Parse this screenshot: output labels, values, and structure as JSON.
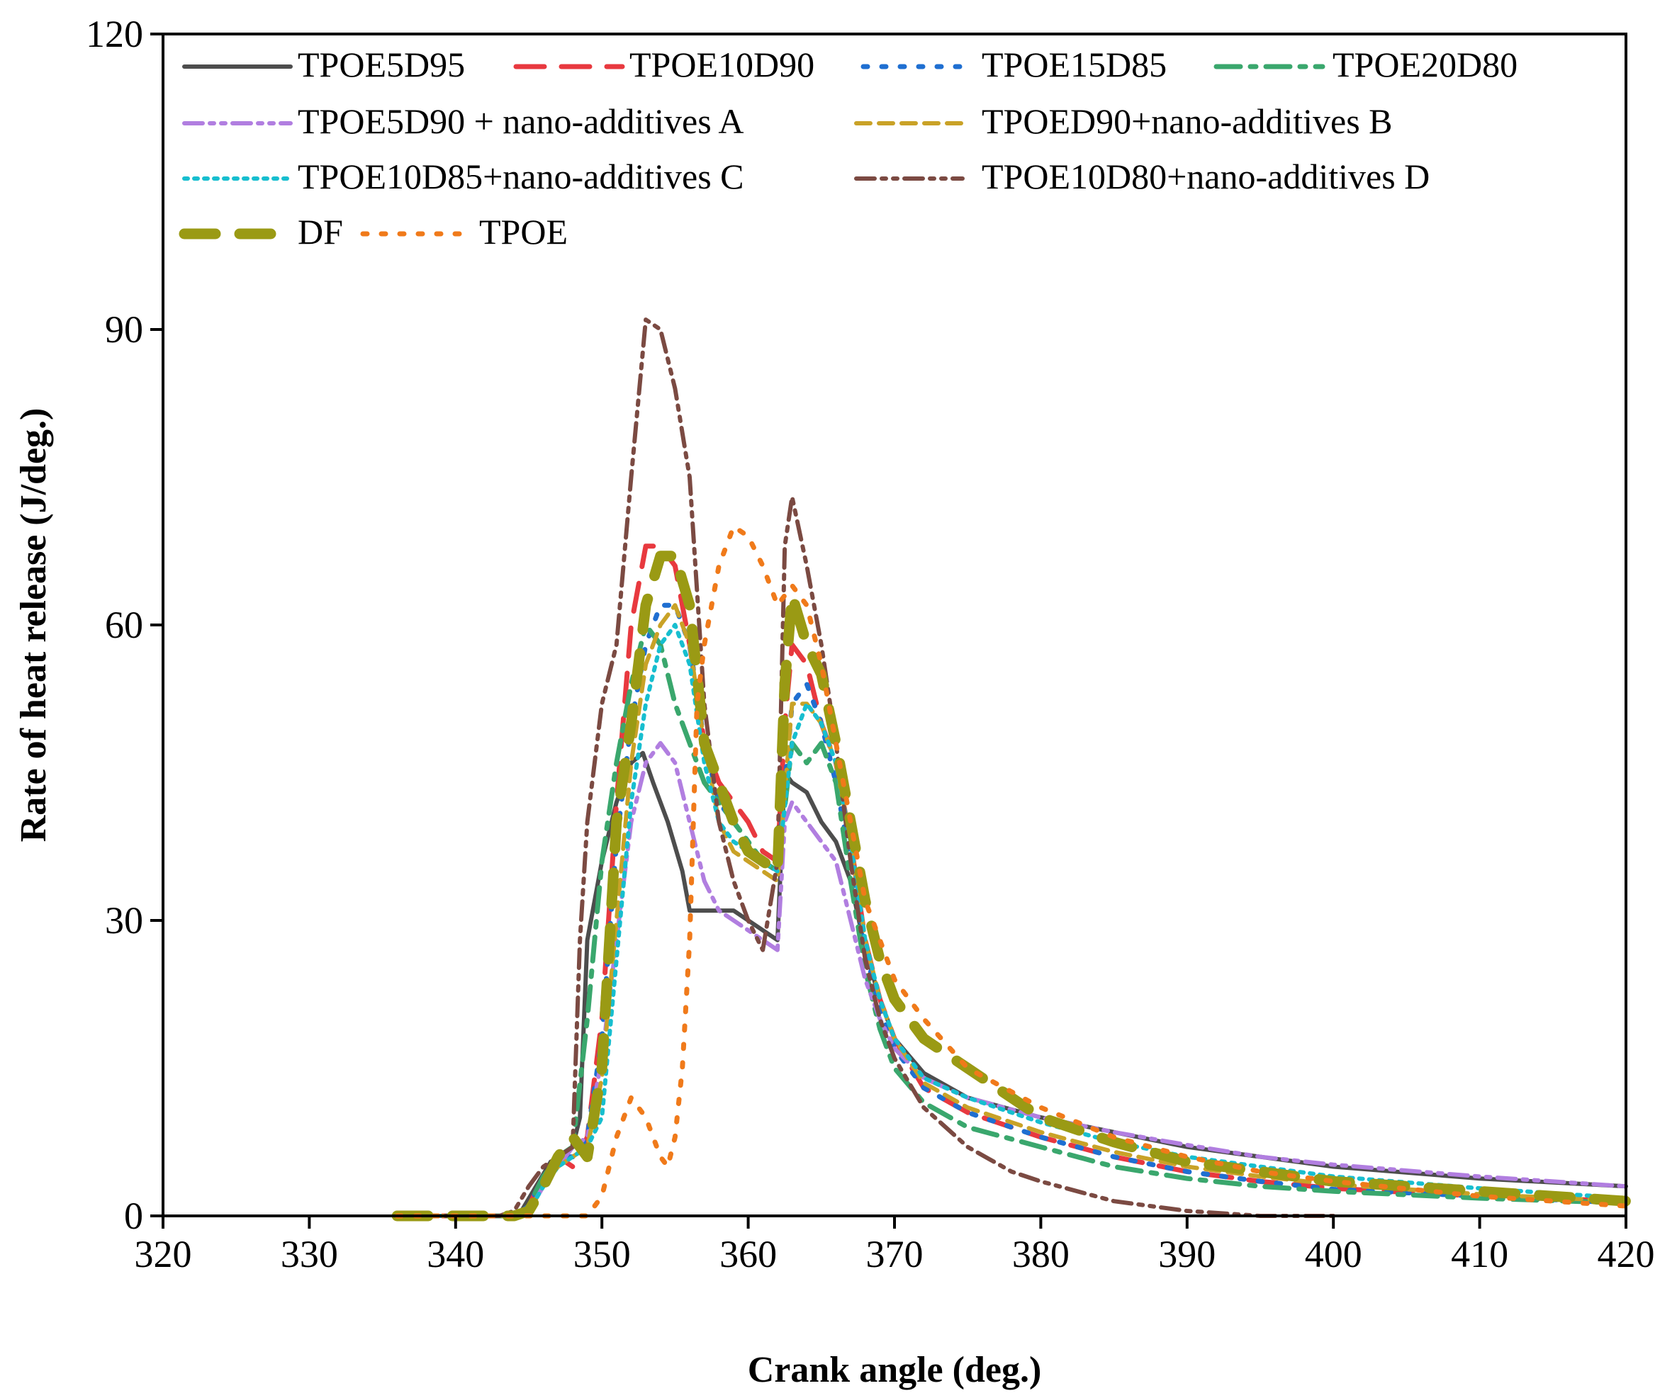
{
  "chart_data": {
    "type": "line",
    "title": "",
    "xlabel": "Crank angle (deg.)",
    "ylabel": "Rate of heat release (J/deg.)",
    "xlim": [
      320,
      420
    ],
    "ylim": [
      0,
      120
    ],
    "xticks": [
      320,
      330,
      340,
      350,
      360,
      370,
      380,
      390,
      400,
      410,
      420
    ],
    "yticks": [
      0,
      30,
      60,
      90,
      120
    ],
    "grid": false,
    "legend_position": "top-left",
    "series": [
      {
        "name": "TPOE5D95",
        "color": "#4d4d4d",
        "dash": "solid",
        "x": [
          336,
          343,
          344.5,
          345.5,
          346.5,
          347.5,
          348,
          348.5,
          349,
          350,
          351,
          352,
          352.8,
          353.5,
          354.5,
          355.5,
          356,
          357,
          358,
          359,
          360,
          361,
          362,
          362.5,
          363,
          364,
          365,
          366,
          367,
          368,
          369,
          370,
          372,
          375,
          380,
          385,
          390,
          395,
          400,
          410,
          420
        ],
        "y": [
          0,
          0,
          0.5,
          3,
          5.5,
          6,
          7,
          10,
          28,
          36,
          42,
          46,
          47,
          44,
          40,
          35,
          31,
          31,
          31,
          31,
          30,
          29,
          28,
          45,
          44,
          43,
          40,
          38,
          34,
          27,
          22,
          18,
          14.5,
          12,
          10,
          8.5,
          7,
          6,
          5,
          3.8,
          3
        ]
      },
      {
        "name": "TPOE10D90",
        "color": "#e8393f",
        "dash": "long-dash",
        "x": [
          336,
          344,
          345,
          346,
          347,
          348,
          349,
          350,
          351,
          352,
          353,
          354,
          355,
          356,
          357,
          358,
          359,
          360,
          361,
          362,
          362.5,
          363,
          364,
          365,
          366,
          367,
          368,
          369,
          370,
          372,
          375,
          380,
          385,
          390,
          395,
          400,
          410,
          420
        ],
        "y": [
          0,
          0,
          1,
          4,
          6,
          5,
          8,
          20,
          42,
          60,
          68,
          68,
          66,
          58,
          48,
          44,
          42,
          40,
          37,
          36,
          50,
          58,
          56,
          50,
          46,
          38,
          28,
          22,
          18,
          13,
          10.5,
          8,
          6,
          4.5,
          3.5,
          2.8,
          2,
          1.5
        ]
      },
      {
        "name": "TPOE15D85",
        "color": "#1f6fd1",
        "dash": "dot",
        "x": [
          336,
          344,
          345,
          346,
          347,
          348,
          349,
          350,
          351,
          352,
          353,
          354,
          355,
          356,
          357,
          358,
          359,
          360,
          361,
          362,
          363,
          364,
          365,
          366,
          367,
          368,
          369,
          370,
          372,
          375,
          380,
          385,
          390,
          395,
          400,
          410,
          420
        ],
        "y": [
          0,
          0,
          1,
          4,
          6,
          6,
          8,
          18,
          38,
          50,
          58,
          62,
          62,
          58,
          48,
          42,
          40,
          38,
          36,
          35,
          52,
          54,
          50,
          44,
          36,
          27,
          21,
          17,
          13,
          10.5,
          8,
          6,
          4.5,
          3.5,
          2.7,
          2,
          1.3
        ]
      },
      {
        "name": "TPOE20D80",
        "color": "#3aa76d",
        "dash": "dash-dot",
        "x": [
          336,
          344,
          345,
          346,
          347,
          348,
          349,
          350,
          351,
          352,
          353,
          354,
          355,
          356,
          357,
          358,
          359,
          360,
          361,
          362,
          363,
          364,
          365,
          366,
          367,
          368,
          369,
          370,
          372,
          375,
          380,
          385,
          390,
          395,
          400,
          410,
          420
        ],
        "y": [
          0,
          0,
          1,
          4,
          6,
          7,
          20,
          36,
          46,
          54,
          60,
          58,
          52,
          48,
          44,
          42,
          40,
          38,
          36,
          35,
          48,
          46,
          48,
          44,
          34,
          25,
          19,
          15,
          11.5,
          9,
          7,
          5,
          3.8,
          3,
          2.5,
          1.8,
          1.3
        ]
      },
      {
        "name": "TPOE5D90 + nano-additives A",
        "color": "#b17ee0",
        "dash": "dash-dot-dot",
        "x": [
          336,
          344,
          345,
          346,
          347,
          348,
          349,
          350,
          351,
          352,
          353,
          354,
          355,
          356,
          357,
          358,
          359,
          360,
          361,
          362,
          362.5,
          363,
          364,
          365,
          366,
          367,
          368,
          369,
          370,
          372,
          375,
          380,
          385,
          390,
          395,
          400,
          410,
          420
        ],
        "y": [
          0,
          0,
          0.5,
          3,
          5,
          7,
          8,
          16,
          28,
          40,
          46,
          48,
          46,
          40,
          34,
          31,
          30,
          29,
          28,
          27,
          40,
          42,
          40,
          38,
          36,
          30,
          24,
          20,
          17,
          14,
          12,
          10,
          8.5,
          7.2,
          6,
          5.2,
          4,
          3
        ]
      },
      {
        "name": "TPOED90+nano-additives B",
        "color": "#c9a227",
        "dash": "short-dash",
        "x": [
          336,
          344,
          345,
          346,
          347,
          348,
          349,
          350,
          351,
          352,
          353,
          354,
          355,
          356,
          357,
          358,
          359,
          360,
          361,
          362,
          363,
          364,
          365,
          366,
          367,
          368,
          369,
          370,
          372,
          375,
          380,
          385,
          390,
          395,
          400,
          410,
          420
        ],
        "y": [
          0,
          0,
          0.5,
          3,
          5,
          6,
          7,
          14,
          30,
          46,
          56,
          60,
          62,
          58,
          48,
          40,
          37,
          36,
          35,
          34,
          52,
          52,
          50,
          46,
          38,
          28,
          22,
          18,
          13.5,
          11,
          8.5,
          6.5,
          5,
          4,
          3.2,
          2.2,
          1.5
        ]
      },
      {
        "name": "TPOE10D85+nano-additives C",
        "color": "#17becf",
        "dash": "dense-dot",
        "x": [
          336,
          344,
          345,
          346,
          347,
          348,
          349,
          350,
          351,
          352,
          353,
          354,
          355,
          356,
          357,
          358,
          359,
          360,
          361,
          362,
          363,
          364,
          365,
          366,
          367,
          368,
          369,
          370,
          372,
          375,
          380,
          385,
          390,
          395,
          400,
          410,
          420
        ],
        "y": [
          0,
          0,
          0.5,
          3,
          5,
          6,
          7,
          10,
          26,
          42,
          52,
          58,
          60,
          56,
          46,
          40,
          38,
          37,
          36,
          35,
          48,
          52,
          50,
          46,
          38,
          28,
          22,
          18,
          14,
          12,
          9.5,
          7.5,
          6,
          5,
          4,
          2.8,
          1.8
        ]
      },
      {
        "name": "TPOE10D80+nano-additives D",
        "color": "#7b4a42",
        "dash": "dash-dot-dot",
        "x": [
          336,
          343,
          344,
          345,
          346,
          347,
          348,
          348.5,
          349,
          350,
          351,
          352,
          353,
          354,
          355,
          356,
          357,
          358,
          359,
          360,
          361,
          362,
          362.5,
          363,
          364,
          365,
          366,
          367,
          368,
          369,
          370,
          372,
          375,
          378,
          380,
          385,
          390,
          395,
          400
        ],
        "y": [
          0,
          0,
          0.5,
          3,
          5,
          6,
          7,
          28,
          40,
          52,
          58,
          75,
          91,
          90,
          84,
          75,
          52,
          40,
          34,
          30,
          27,
          36,
          68,
          73,
          66,
          58,
          48,
          36,
          26,
          20,
          16,
          11,
          7,
          4.5,
          3.5,
          1.5,
          0.5,
          0,
          0
        ]
      },
      {
        "name": "DF",
        "color": "#9a9a14",
        "dash": "thick-dash",
        "x": [
          336,
          344,
          345,
          346,
          347,
          348,
          349,
          350,
          351,
          352,
          353,
          354,
          355,
          356,
          357,
          358,
          359,
          360,
          361,
          362,
          362.5,
          363,
          364,
          365,
          366,
          367,
          368,
          369,
          370,
          372,
          375,
          380,
          385,
          390,
          395,
          400,
          410,
          420
        ],
        "y": [
          0,
          0,
          0.5,
          3,
          6,
          8,
          6,
          15,
          40,
          50,
          62,
          67,
          67,
          62,
          48,
          44,
          40,
          37,
          36,
          35,
          54,
          63,
          58,
          55,
          48,
          40,
          32,
          26,
          22,
          18,
          15,
          10,
          7.5,
          5.5,
          4.5,
          3.5,
          2.5,
          1.5
        ]
      },
      {
        "name": "TPOE",
        "color": "#f07a1a",
        "dash": "dot",
        "x": [
          336,
          348,
          349,
          350,
          351,
          352,
          353,
          354,
          354.5,
          355,
          355.5,
          356,
          356.5,
          357,
          358,
          359,
          360,
          361,
          362,
          363,
          364,
          365,
          366,
          367,
          368,
          369,
          370,
          372,
          375,
          380,
          385,
          390,
          395,
          400,
          410,
          420
        ],
        "y": [
          0,
          0,
          0,
          2,
          8,
          12,
          10,
          6,
          5,
          8,
          15,
          28,
          52,
          58,
          66,
          70,
          69,
          66,
          62,
          64,
          62,
          56,
          48,
          40,
          32,
          28,
          24,
          20,
          15,
          11,
          8,
          6,
          4.5,
          3.5,
          2,
          1
        ]
      }
    ]
  }
}
